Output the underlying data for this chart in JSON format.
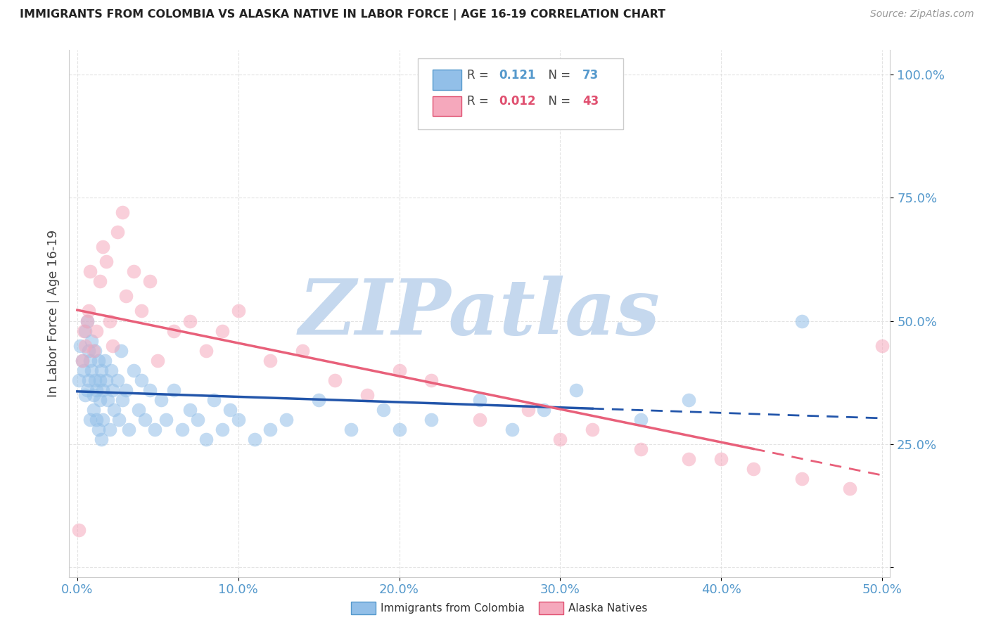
{
  "title": "IMMIGRANTS FROM COLOMBIA VS ALASKA NATIVE IN LABOR FORCE | AGE 16-19 CORRELATION CHART",
  "source": "Source: ZipAtlas.com",
  "ylabel": "In Labor Force | Age 16-19",
  "xlim": [
    -0.005,
    0.505
  ],
  "ylim": [
    -0.02,
    1.05
  ],
  "xticks": [
    0.0,
    0.1,
    0.2,
    0.3,
    0.4,
    0.5
  ],
  "xtick_labels": [
    "0.0%",
    "10.0%",
    "20.0%",
    "30.0%",
    "40.0%",
    "50.0%"
  ],
  "yticks": [
    0.0,
    0.25,
    0.5,
    0.75,
    1.0
  ],
  "ytick_labels": [
    "",
    "25.0%",
    "50.0%",
    "75.0%",
    "100.0%"
  ],
  "legend_blue_R": "0.121",
  "legend_blue_N": "73",
  "legend_pink_R": "0.012",
  "legend_pink_N": "43",
  "blue_color": "#92bfe8",
  "pink_color": "#f5a8bc",
  "blue_line_color": "#2255aa",
  "pink_line_color": "#e8607a",
  "watermark": "ZIPatlas",
  "watermark_color": "#c5d8ee",
  "background_color": "#ffffff",
  "grid_color": "#dddddd",
  "tick_color": "#5599cc",
  "blue_scatter_x": [
    0.001,
    0.002,
    0.003,
    0.004,
    0.005,
    0.005,
    0.006,
    0.006,
    0.007,
    0.007,
    0.008,
    0.008,
    0.009,
    0.009,
    0.01,
    0.01,
    0.011,
    0.011,
    0.012,
    0.012,
    0.013,
    0.013,
    0.014,
    0.014,
    0.015,
    0.015,
    0.016,
    0.016,
    0.017,
    0.018,
    0.019,
    0.02,
    0.021,
    0.022,
    0.023,
    0.025,
    0.026,
    0.027,
    0.028,
    0.03,
    0.032,
    0.035,
    0.038,
    0.04,
    0.042,
    0.045,
    0.048,
    0.052,
    0.055,
    0.06,
    0.065,
    0.07,
    0.075,
    0.08,
    0.085,
    0.09,
    0.095,
    0.1,
    0.11,
    0.12,
    0.13,
    0.15,
    0.17,
    0.19,
    0.2,
    0.22,
    0.25,
    0.27,
    0.29,
    0.31,
    0.35,
    0.38,
    0.45
  ],
  "blue_scatter_y": [
    0.38,
    0.45,
    0.42,
    0.4,
    0.48,
    0.35,
    0.5,
    0.36,
    0.44,
    0.38,
    0.42,
    0.3,
    0.4,
    0.46,
    0.35,
    0.32,
    0.44,
    0.38,
    0.36,
    0.3,
    0.42,
    0.28,
    0.38,
    0.34,
    0.4,
    0.26,
    0.36,
    0.3,
    0.42,
    0.38,
    0.34,
    0.28,
    0.4,
    0.36,
    0.32,
    0.38,
    0.3,
    0.44,
    0.34,
    0.36,
    0.28,
    0.4,
    0.32,
    0.38,
    0.3,
    0.36,
    0.28,
    0.34,
    0.3,
    0.36,
    0.28,
    0.32,
    0.3,
    0.26,
    0.34,
    0.28,
    0.32,
    0.3,
    0.26,
    0.28,
    0.3,
    0.34,
    0.28,
    0.32,
    0.28,
    0.3,
    0.34,
    0.28,
    0.32,
    0.36,
    0.3,
    0.34,
    0.5
  ],
  "pink_scatter_x": [
    0.001,
    0.003,
    0.004,
    0.005,
    0.006,
    0.007,
    0.008,
    0.01,
    0.012,
    0.014,
    0.016,
    0.018,
    0.02,
    0.022,
    0.025,
    0.028,
    0.03,
    0.035,
    0.04,
    0.045,
    0.05,
    0.06,
    0.07,
    0.08,
    0.09,
    0.1,
    0.12,
    0.14,
    0.16,
    0.18,
    0.2,
    0.22,
    0.25,
    0.28,
    0.3,
    0.32,
    0.35,
    0.38,
    0.4,
    0.42,
    0.45,
    0.48,
    0.5
  ],
  "pink_scatter_y": [
    0.075,
    0.42,
    0.48,
    0.45,
    0.5,
    0.52,
    0.6,
    0.44,
    0.48,
    0.58,
    0.65,
    0.62,
    0.5,
    0.45,
    0.68,
    0.72,
    0.55,
    0.6,
    0.52,
    0.58,
    0.42,
    0.48,
    0.5,
    0.44,
    0.48,
    0.52,
    0.42,
    0.44,
    0.38,
    0.35,
    0.4,
    0.38,
    0.3,
    0.32,
    0.26,
    0.28,
    0.24,
    0.22,
    0.22,
    0.2,
    0.18,
    0.16,
    0.45
  ]
}
